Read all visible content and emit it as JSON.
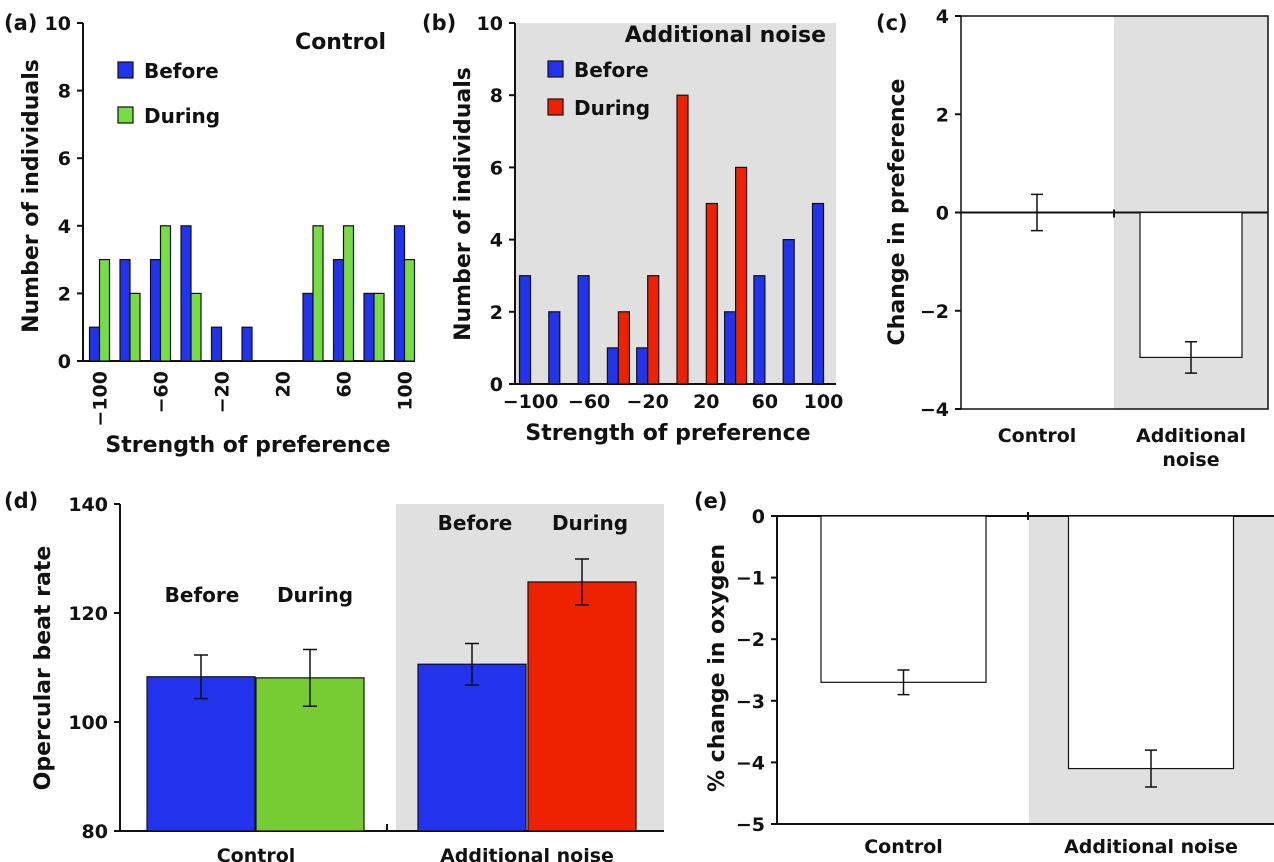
{
  "chart_data": [
    {
      "id": "a",
      "panel_label": "(a)",
      "type": "bar",
      "title": "Control",
      "xlabel": "Strength of preference",
      "ylabel": "Number of individuals",
      "ylim": [
        0,
        10
      ],
      "yticks": [
        "0",
        "2",
        "4",
        "6",
        "8",
        "10"
      ],
      "xtick_labels": [
        "−100",
        "−60",
        "−20",
        "20",
        "60",
        "100"
      ],
      "categories": [
        -100,
        -80,
        -60,
        -40,
        -20,
        0,
        20,
        40,
        60,
        80,
        100
      ],
      "series": [
        {
          "name": "Before",
          "color": "#2233ee",
          "values": [
            1,
            3,
            3,
            4,
            1,
            1,
            0,
            2,
            3,
            2,
            4
          ]
        },
        {
          "name": "During",
          "color": "#77dd44",
          "values": [
            3,
            2,
            4,
            2,
            0,
            0,
            0,
            4,
            4,
            2,
            3
          ]
        }
      ],
      "legend_position": "top-left",
      "background": "#ffffff"
    },
    {
      "id": "b",
      "panel_label": "(b)",
      "type": "bar",
      "title": "Additional noise",
      "xlabel": "Strength of preference",
      "ylabel": "Number of individuals",
      "ylim": [
        0,
        10
      ],
      "yticks": [
        "0",
        "2",
        "4",
        "6",
        "8",
        "10"
      ],
      "xtick_labels": [
        "−100",
        "−60",
        "−20",
        "20",
        "60",
        "100"
      ],
      "categories": [
        -100,
        -80,
        -60,
        -40,
        -20,
        0,
        20,
        40,
        60,
        80,
        100
      ],
      "series": [
        {
          "name": "Before",
          "color": "#2233ee",
          "values": [
            3,
            2,
            3,
            1,
            1,
            0,
            0,
            2,
            3,
            4,
            5
          ]
        },
        {
          "name": "During",
          "color": "#ee2200",
          "values": [
            0,
            0,
            0,
            2,
            3,
            8,
            5,
            6,
            0,
            0,
            0
          ]
        }
      ],
      "legend_position": "top-left",
      "background": "#e0e0e0"
    },
    {
      "id": "c",
      "panel_label": "(c)",
      "type": "bar",
      "ylabel": "Change in preference",
      "ylim": [
        -4,
        4
      ],
      "yticks": [
        "−4",
        "−2",
        "0",
        "2",
        "4"
      ],
      "categories": [
        "Control",
        "Additional\nnoise"
      ],
      "values": [
        0,
        -2.95
      ],
      "errors": [
        0.37,
        0.32
      ],
      "bar_color": "#ffffff",
      "shaded_group": "Additional noise"
    },
    {
      "id": "d",
      "panel_label": "(d)",
      "type": "bar",
      "ylabel": "Opercular beat rate",
      "ylim": [
        80,
        140
      ],
      "yticks": [
        "80",
        "100",
        "120",
        "140"
      ],
      "groups": [
        "Control",
        "Additional noise"
      ],
      "series_labels": [
        "Before",
        "During"
      ],
      "bars": [
        {
          "group": "Control",
          "label": "Before",
          "value": 108.3,
          "error": 4.0,
          "color": "#2233ee"
        },
        {
          "group": "Control",
          "label": "During",
          "value": 108.1,
          "error": 5.2,
          "color": "#77cc33"
        },
        {
          "group": "Additional noise",
          "label": "Before",
          "value": 110.6,
          "error": 3.8,
          "color": "#2233ee"
        },
        {
          "group": "Additional noise",
          "label": "During",
          "value": 125.7,
          "error": 4.2,
          "color": "#ee2200"
        }
      ],
      "shaded_group": "Additional noise"
    },
    {
      "id": "e",
      "panel_label": "(e)",
      "type": "bar",
      "ylabel": "% change in oxygen",
      "ylim": [
        -5,
        0
      ],
      "yticks": [
        "−5",
        "−4",
        "−3",
        "−2",
        "−1",
        "0"
      ],
      "categories": [
        "Control",
        "Additional noise"
      ],
      "values": [
        -2.7,
        -4.1
      ],
      "errors": [
        0.2,
        0.3
      ],
      "bar_color": "#ffffff",
      "shaded_group": "Additional noise"
    }
  ]
}
